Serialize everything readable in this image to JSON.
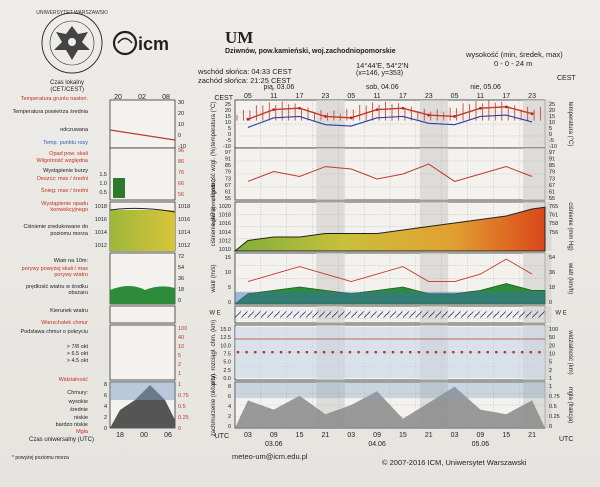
{
  "header": {
    "city_code": "UM",
    "location": "Dziwnów, pow.kamieński, woj.zachodniopomorskie",
    "sunrise": "wschód słońca: 04:33 CEST",
    "sunset": "zachód słońca: 21:25 CEST",
    "coords": "14°44'E, 54°2'N",
    "grid": "(x=146, y=353)",
    "heights_label": "wysokość (min, średek, max)",
    "heights_values": "0 - 0 - 24 m",
    "cest_label": "CEST",
    "univ_logo_text": "UNIWERSYTET WARSZAWSKI",
    "icm_logo_text": "icm"
  },
  "time_axis": {
    "cest_days": [
      "pią, 03.06",
      "sob, 04.06",
      "nie, 05.06"
    ],
    "cest_hours": [
      "05",
      "11",
      "17",
      "23",
      "05",
      "11",
      "17",
      "23",
      "05",
      "11",
      "17",
      "23"
    ],
    "utc_label": "UTC",
    "utc_hours": [
      "03",
      "09",
      "15",
      "21",
      "03",
      "09",
      "15",
      "21",
      "03",
      "09",
      "15",
      "21"
    ],
    "utc_dates": [
      "03.06",
      "04.06",
      "05.06"
    ],
    "left_cest_hours": [
      "20",
      "02",
      "08"
    ],
    "left_utc_hours": [
      "18",
      "00",
      "06"
    ]
  },
  "legend": {
    "czas_lokalny": "Czas lokalny (CET/CEST)",
    "temp_gruntu": "Temperatura gruntu nasłon.",
    "temperatura": "Temperatura powietrza średnia",
    "odczuwana": "odczuwana",
    "punkt_rosy": "Temp. punktu rosy",
    "opad": "Opad pow. skali",
    "wilgotnosc": "Wilgotność względna",
    "burza": "Wystąpienie burzy",
    "deszcz": "Deszcz: max / średni",
    "snieg": "Śnieg: max / średni",
    "opad_konw": "Wystąpienie opadu konwekcyjnego",
    "cisnienie": "Ciśnienie zredukowane do poziomu morza",
    "wiatr": "Wiatr na 10m:",
    "porywy": "porywy powyżej skali / max porywy wiatru",
    "predkosc": "prędkość wiatru w środku obszaru",
    "kierunek": "Kierunek wiatru",
    "chmury_wierzch": "Wierzchołek chmur",
    "podstawa": "Podstawa chmur o pokryciu",
    "pok1": "> 7/8 okt",
    "pok2": "> 6.5 okt",
    "pok3": "> 4.5 okt",
    "widzialnosc": "Widzialność",
    "chmury": "Chmury:",
    "wysokie": "wysokie",
    "srednie": "średnie",
    "niskie": "niskie",
    "bardzo_niskie": "bardzo niskie",
    "mgla": "Mgła",
    "czas_uniwersalny": "Czas uniwersalny (UTC)",
    "footnote": "* powyżej poziomu morza"
  },
  "panels": {
    "temperatura": {
      "unit": "temperatura (°C)",
      "ticks": [
        "25",
        "20",
        "15",
        "10",
        "5",
        "0",
        "-5",
        "-10"
      ]
    },
    "wilgotnosc": {
      "unit": "wilgotność wzgl. (%)",
      "ticks": [
        "97",
        "91",
        "85",
        "79",
        "73",
        "67",
        "61",
        "55"
      ]
    },
    "opad": {
      "unit": "opad (mm, l/godz.)",
      "ticks": [
        "2.5",
        "2",
        "1.5",
        "1",
        "0.5"
      ]
    },
    "cisnienie": {
      "unit": "ciśnienie (hPa)",
      "ticks": [
        "1020",
        "1018",
        "1016",
        "1014",
        "1012",
        "1010"
      ],
      "right_unit": "ciśnienie (mm Hg)",
      "right_ticks": [
        "765",
        "761",
        "758",
        "756"
      ]
    },
    "wiatr": {
      "unit": "wiatr (m/s)",
      "ticks": [
        "15",
        "10",
        "5",
        "0"
      ],
      "right_unit": "wiatr (km/h)",
      "right_ticks": [
        "54",
        "36",
        "18",
        "0"
      ]
    },
    "kierunek": {
      "unit": "W E",
      "right_unit": "W E"
    },
    "chmury": {
      "unit": "pion. rozciągł. chm. (km)",
      "ticks": [
        "15.0",
        "12.5",
        "10.0",
        "7.5",
        "5.0",
        "2.5",
        "0.0"
      ],
      "right_unit": "widzialność (km)",
      "right_ticks": [
        "100",
        "50",
        "20",
        "10",
        "5",
        "2",
        "1"
      ]
    },
    "zachmurzenie": {
      "unit": "zachmurzenie (oktanty)",
      "ticks": [
        "8",
        "6",
        "4",
        "2",
        "0"
      ],
      "right_unit": "mgła (frakcja)",
      "right_ticks": [
        "1",
        "0.75",
        "0.5",
        "0.25",
        "0"
      ]
    }
  },
  "left_panel_ticks": {
    "temp": [
      "30",
      "20",
      "10",
      "0",
      "-10"
    ],
    "opad": [
      "96",
      "86",
      "76",
      "66",
      "56"
    ],
    "cisn": [
      "1018",
      "1016",
      "1014",
      "1012"
    ],
    "wiatr": [
      "72",
      "54",
      "36",
      "18",
      "0"
    ],
    "chmury": [
      "100",
      "40",
      "10",
      "5",
      "2",
      "1"
    ],
    "zachm": [
      "8",
      "6",
      "4",
      "2",
      "0"
    ],
    "zachm_r": [
      "1",
      "0.75",
      "0.5",
      "0.25",
      "0"
    ],
    "hum_l": [
      "1.5",
      "1.0",
      "0.5"
    ]
  },
  "footer": {
    "email": "meteo-um@icm.edu.pl",
    "copyright": "© 2007-2016 ICM, Uniwersytet Warszawski"
  },
  "colors": {
    "temp_line": "#c0392b",
    "dew_line": "#2a3fa8",
    "pressure_fill_low": "#d2c33c",
    "pressure_fill_high": "#d9541a",
    "wind_fill": "#2e8b3a",
    "cloud_panel_bg": "#c8d6e6"
  },
  "chart_data": {
    "type": "line",
    "title": "UM",
    "x": [
      "03",
      "09",
      "15",
      "21",
      "03",
      "09",
      "15",
      "21",
      "03",
      "09",
      "15",
      "21"
    ],
    "series": [
      {
        "name": "Temperatura",
        "values": [
          11,
          18,
          19,
          13,
          12,
          18,
          19,
          14,
          13,
          19,
          20,
          15
        ]
      },
      {
        "name": "Ciśnienie",
        "values": [
          1011,
          1012,
          1012,
          1013,
          1013,
          1013,
          1014,
          1015,
          1016,
          1017,
          1018,
          1020
        ]
      },
      {
        "name": "Wiatr",
        "values": [
          3,
          4,
          5,
          4,
          3,
          4,
          5,
          3,
          3,
          4,
          6,
          4
        ]
      }
    ],
    "ylim": [
      -10,
      25
    ]
  }
}
